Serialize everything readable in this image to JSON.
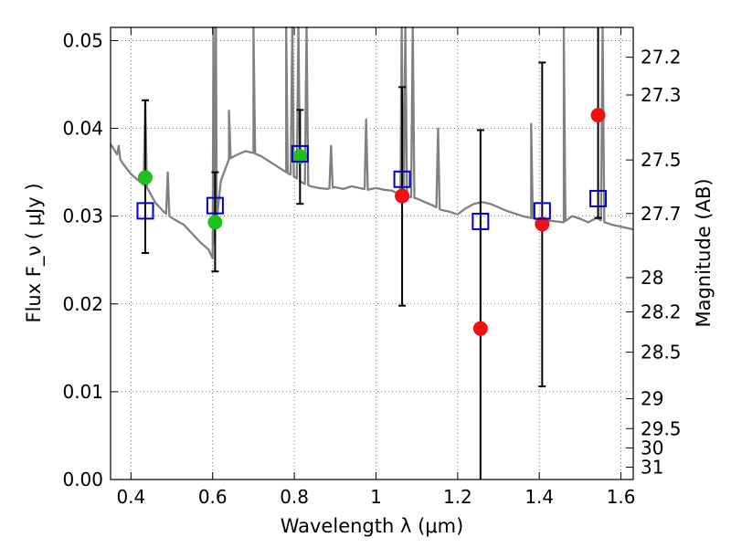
{
  "chart_data": {
    "type": "scatter",
    "xlabel": "Wavelength  λ (μm)",
    "ylabel": "Flux  F_ν  ( μJy )",
    "y2label": "Magnitude (AB)",
    "xlim": [
      0.35,
      1.63
    ],
    "ylim": [
      0.0,
      0.0515
    ],
    "xticks": [
      0.4,
      0.6,
      0.8,
      1.0,
      1.2,
      1.4,
      1.6
    ],
    "xtick_labels": [
      "0.4",
      "0.6",
      "0.8",
      "1",
      "1.2",
      "1.4",
      "1.6"
    ],
    "yticks": [
      0.0,
      0.01,
      0.02,
      0.03,
      0.04,
      0.05
    ],
    "ytick_labels": [
      "0.00",
      "0.01",
      "0.02",
      "0.03",
      "0.04",
      "0.05"
    ],
    "mag_ticks": [
      {
        "label": "27.2",
        "flux": 0.0481
      },
      {
        "label": "27.3",
        "flux": 0.0438
      },
      {
        "label": "27.5",
        "flux": 0.0364
      },
      {
        "label": "27.7",
        "flux": 0.0303
      },
      {
        "label": "28",
        "flux": 0.023
      },
      {
        "label": "28.2",
        "flux": 0.0191
      },
      {
        "label": "28.5",
        "flux": 0.0145
      },
      {
        "label": "29",
        "flux": 0.0092
      },
      {
        "label": "29.5",
        "flux": 0.0058
      },
      {
        "label": "30",
        "flux": 0.0036
      },
      {
        "label": "31",
        "flux": 0.0014
      }
    ],
    "grid": true,
    "colors": {
      "model": "#808080",
      "observed_green": "#1ec11e",
      "observed_red": "#ee1111",
      "model_flux": "#0000cc",
      "errorbar": "#000000"
    },
    "model_spectrum": {
      "continuum": [
        [
          0.35,
          0.0382
        ],
        [
          0.38,
          0.036
        ],
        [
          0.4,
          0.0348
        ],
        [
          0.42,
          0.034
        ],
        [
          0.44,
          0.0332
        ],
        [
          0.46,
          0.0315
        ],
        [
          0.48,
          0.0305
        ],
        [
          0.5,
          0.0298
        ],
        [
          0.53,
          0.029
        ],
        [
          0.55,
          0.028
        ],
        [
          0.57,
          0.027
        ],
        [
          0.59,
          0.0262
        ],
        [
          0.6,
          0.0252
        ],
        [
          0.61,
          0.0295
        ],
        [
          0.62,
          0.034
        ],
        [
          0.64,
          0.0365
        ],
        [
          0.66,
          0.037
        ],
        [
          0.68,
          0.0374
        ],
        [
          0.7,
          0.0372
        ],
        [
          0.72,
          0.0368
        ],
        [
          0.74,
          0.0362
        ],
        [
          0.76,
          0.0356
        ],
        [
          0.78,
          0.035
        ],
        [
          0.8,
          0.0345
        ],
        [
          0.82,
          0.0338
        ],
        [
          0.84,
          0.0334
        ],
        [
          0.86,
          0.0332
        ],
        [
          0.88,
          0.0331
        ],
        [
          0.9,
          0.0333
        ],
        [
          0.92,
          0.0331
        ],
        [
          0.94,
          0.0334
        ],
        [
          0.96,
          0.0332
        ],
        [
          0.98,
          0.033
        ],
        [
          1.0,
          0.0332
        ],
        [
          1.02,
          0.033
        ],
        [
          1.04,
          0.0329
        ],
        [
          1.06,
          0.0324
        ],
        [
          1.08,
          0.0322
        ],
        [
          1.1,
          0.032
        ],
        [
          1.12,
          0.0316
        ],
        [
          1.14,
          0.0312
        ],
        [
          1.16,
          0.0307
        ],
        [
          1.18,
          0.0305
        ],
        [
          1.2,
          0.0302
        ],
        [
          1.22,
          0.0309
        ],
        [
          1.24,
          0.0314
        ],
        [
          1.26,
          0.0316
        ],
        [
          1.28,
          0.0314
        ],
        [
          1.3,
          0.031
        ],
        [
          1.32,
          0.0306
        ],
        [
          1.34,
          0.0303
        ],
        [
          1.36,
          0.03
        ],
        [
          1.38,
          0.0298
        ],
        [
          1.4,
          0.0296
        ],
        [
          1.42,
          0.0295
        ],
        [
          1.44,
          0.0294
        ],
        [
          1.46,
          0.0293
        ],
        [
          1.48,
          0.03
        ],
        [
          1.5,
          0.0297
        ],
        [
          1.52,
          0.0293
        ],
        [
          1.54,
          0.0298
        ],
        [
          1.56,
          0.0293
        ],
        [
          1.58,
          0.029
        ],
        [
          1.6,
          0.0288
        ],
        [
          1.63,
          0.0285
        ]
      ],
      "lines": [
        {
          "x": 0.37,
          "peak": 0.038
        },
        {
          "x": 0.435,
          "peak": 0.043
        },
        {
          "x": 0.49,
          "peak": 0.035
        },
        {
          "x": 0.602,
          "peak": 0.0515
        },
        {
          "x": 0.608,
          "peak": 0.0515
        },
        {
          "x": 0.64,
          "peak": 0.042
        },
        {
          "x": 0.7,
          "peak": 0.0515
        },
        {
          "x": 0.78,
          "peak": 0.0515
        },
        {
          "x": 0.795,
          "peak": 0.0515
        },
        {
          "x": 0.81,
          "peak": 0.0515
        },
        {
          "x": 0.83,
          "peak": 0.0515
        },
        {
          "x": 0.89,
          "peak": 0.038
        },
        {
          "x": 0.976,
          "peak": 0.041
        },
        {
          "x": 1.063,
          "peak": 0.0515
        },
        {
          "x": 1.072,
          "peak": 0.0515
        },
        {
          "x": 1.09,
          "peak": 0.0515
        },
        {
          "x": 1.152,
          "peak": 0.04
        },
        {
          "x": 1.38,
          "peak": 0.0405
        },
        {
          "x": 1.46,
          "peak": 0.0515
        },
        {
          "x": 1.555,
          "peak": 0.0515
        }
      ]
    },
    "observed": [
      {
        "x": 0.435,
        "y": 0.0344,
        "yerr_low": 0.0258,
        "yerr_high": 0.0432,
        "color": "green"
      },
      {
        "x": 0.606,
        "y": 0.0293,
        "yerr_low": 0.0237,
        "yerr_high": 0.035,
        "color": "green"
      },
      {
        "x": 0.814,
        "y": 0.0368,
        "yerr_low": 0.0314,
        "yerr_high": 0.0421,
        "color": "green"
      },
      {
        "x": 1.064,
        "y": 0.0323,
        "yerr_low": 0.0198,
        "yerr_high": 0.0447,
        "color": "red"
      },
      {
        "x": 1.256,
        "y": 0.0172,
        "yerr_low": 0.0,
        "yerr_high": 0.0398,
        "color": "red"
      },
      {
        "x": 1.407,
        "y": 0.0291,
        "yerr_low": 0.0106,
        "yerr_high": 0.0475,
        "color": "red"
      },
      {
        "x": 1.544,
        "y": 0.0415,
        "yerr_low": 0.0298,
        "yerr_high": 0.0515,
        "color": "red"
      }
    ],
    "model_flux": [
      {
        "x": 0.435,
        "y": 0.0306
      },
      {
        "x": 0.606,
        "y": 0.0312
      },
      {
        "x": 0.814,
        "y": 0.0371
      },
      {
        "x": 1.064,
        "y": 0.0342
      },
      {
        "x": 1.256,
        "y": 0.0294
      },
      {
        "x": 1.407,
        "y": 0.0306
      },
      {
        "x": 1.544,
        "y": 0.032
      }
    ]
  }
}
